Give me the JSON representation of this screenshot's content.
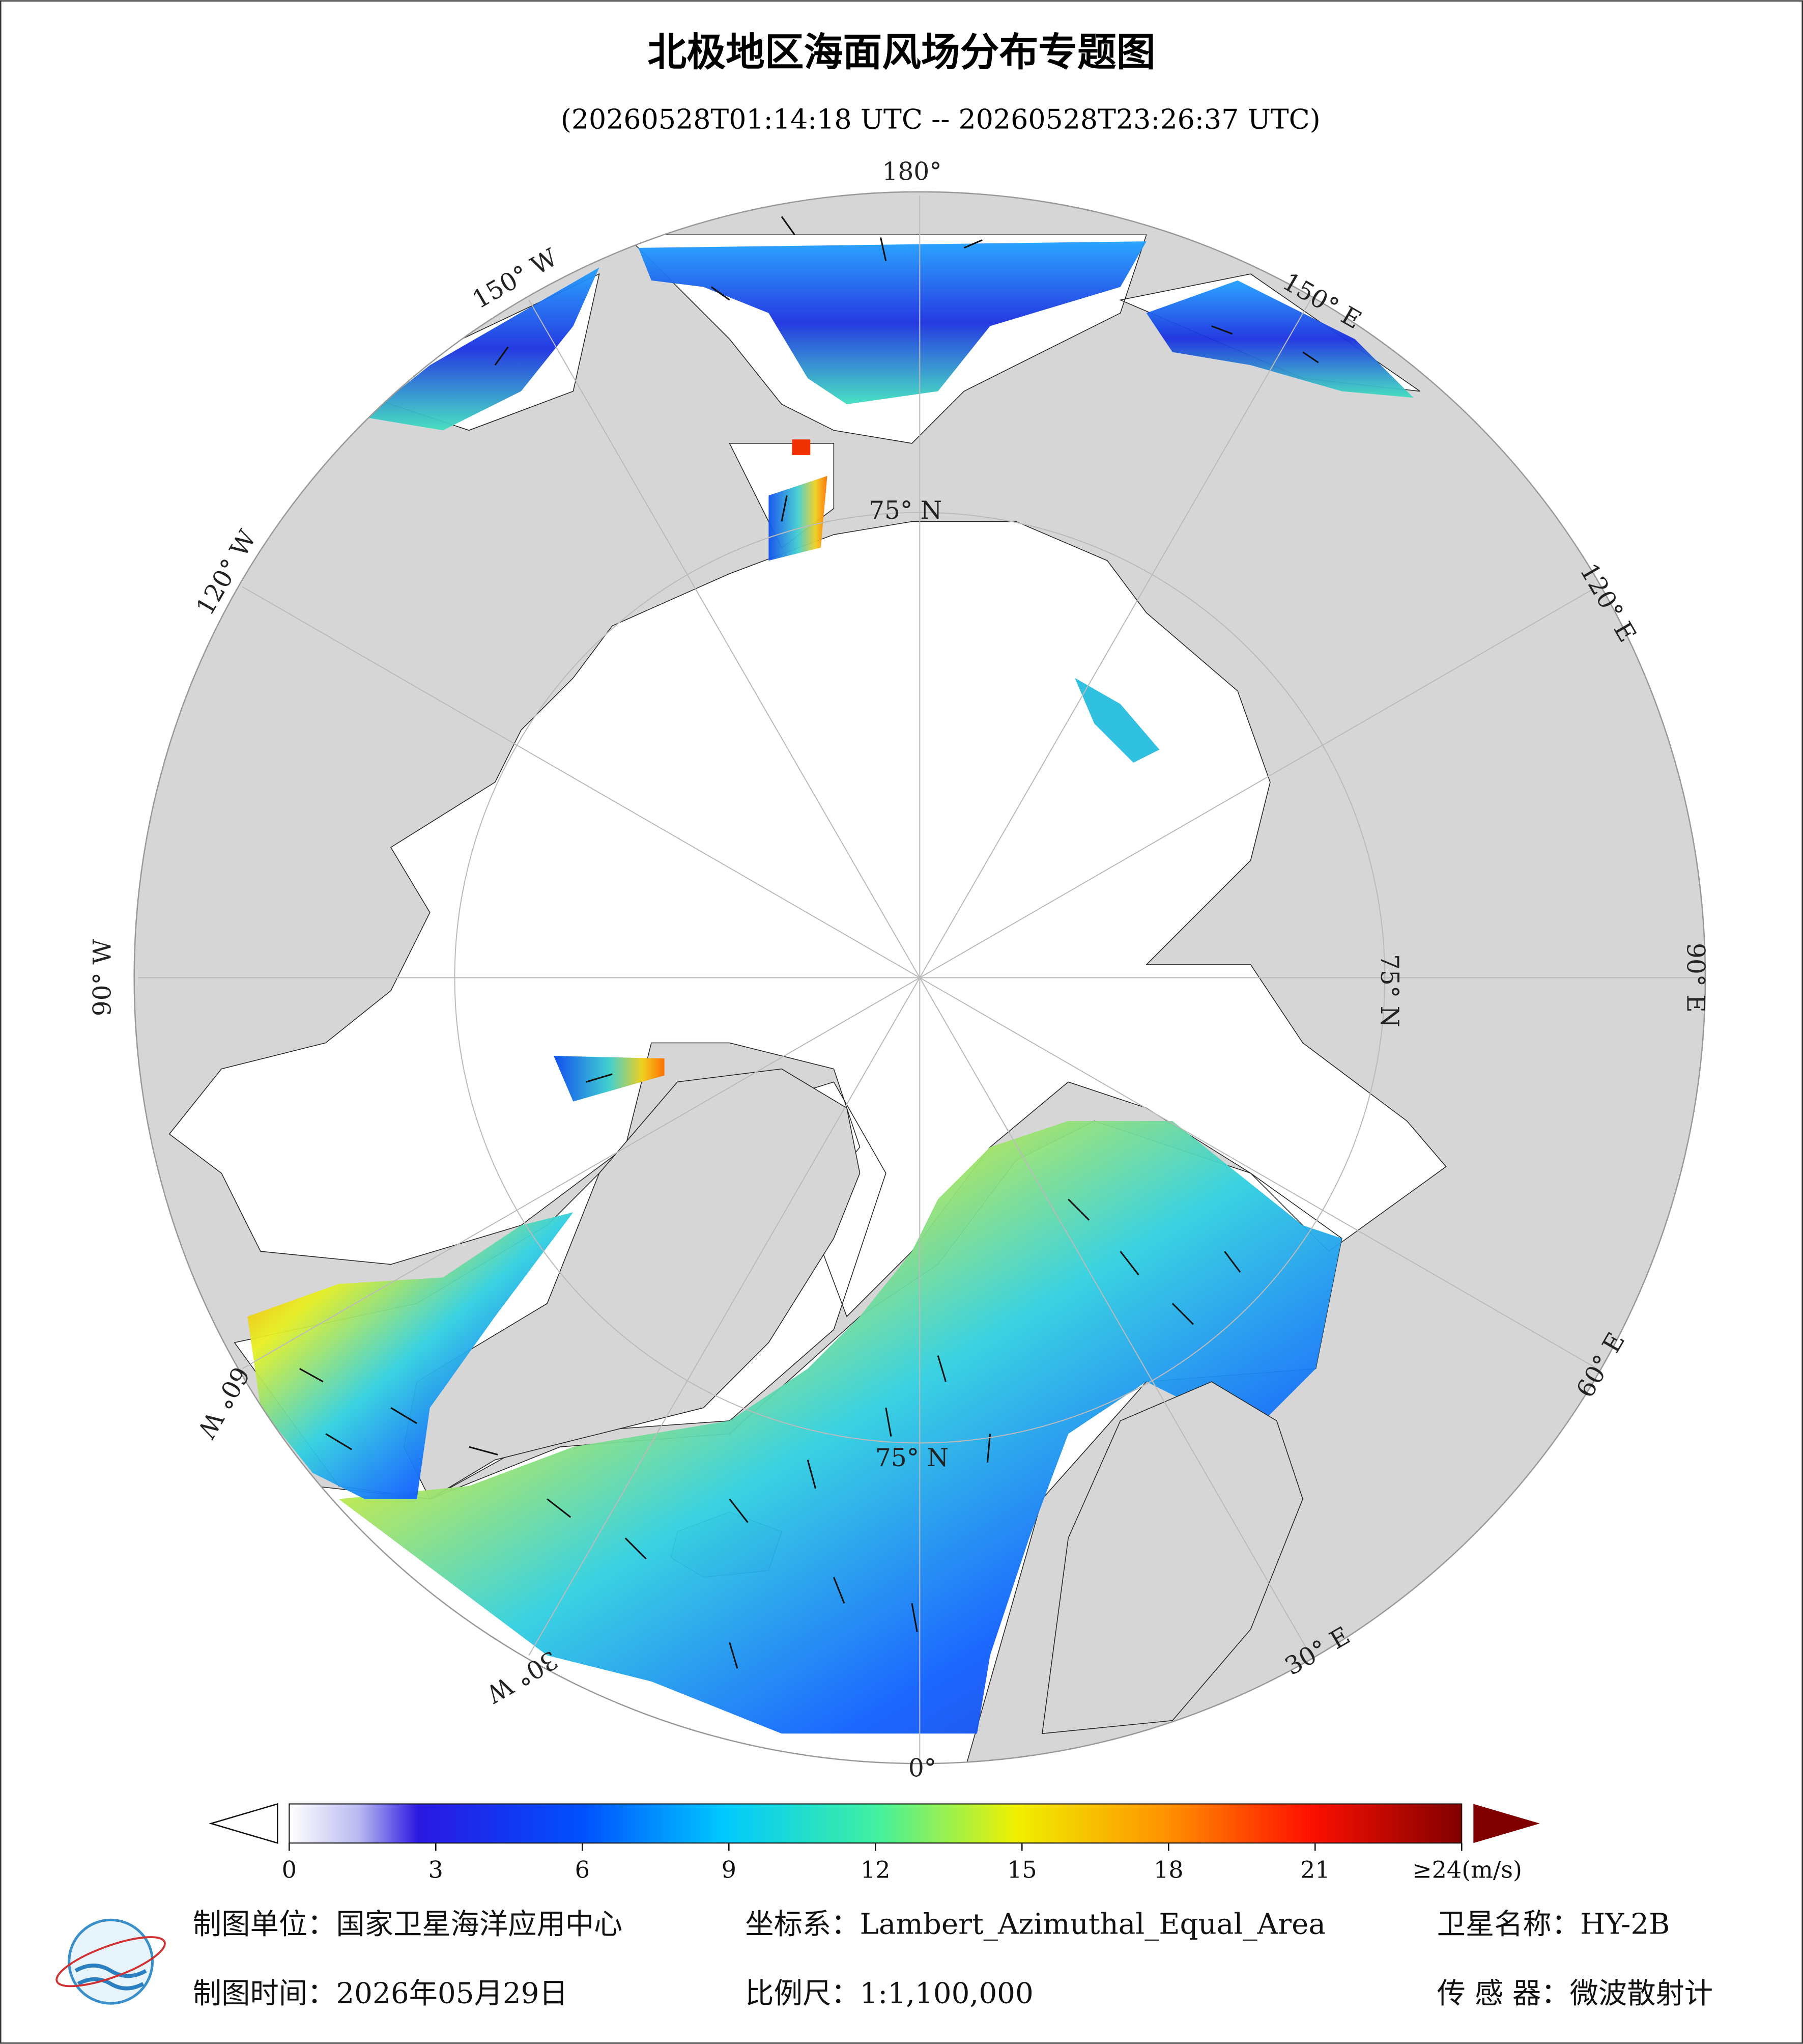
{
  "title": "北极地区海面风场分布专题图",
  "subtitle": "(20260528T01:14:18 UTC -- 20260528T23:26:37 UTC)",
  "map": {
    "longitude_labels": [
      "180°",
      "150° W",
      "150° E",
      "120° W",
      "120° E",
      "90° W",
      "90° E",
      "60° W",
      "60° E",
      "30° W",
      "30° E",
      "0°"
    ],
    "latitude_labels": [
      "75° N",
      "75° N",
      "75° N"
    ]
  },
  "colorbar": {
    "lim": [
      0,
      24
    ],
    "ticks": [
      0,
      3,
      6,
      9,
      12,
      15,
      18,
      21,
      {
        "value": 24,
        "label": "≥24(m/s)"
      }
    ]
  },
  "footer": {
    "unit": "制图单位：国家卫星海洋应用中心",
    "projection": "坐标系：Lambert_Azimuthal_Equal_Area",
    "satellite": "卫星名称：HY-2B",
    "date": "制图时间：2026年05月29日",
    "scale": "比例尺：1:1,100,000",
    "sensor": "传 感 器：微波散射计"
  }
}
